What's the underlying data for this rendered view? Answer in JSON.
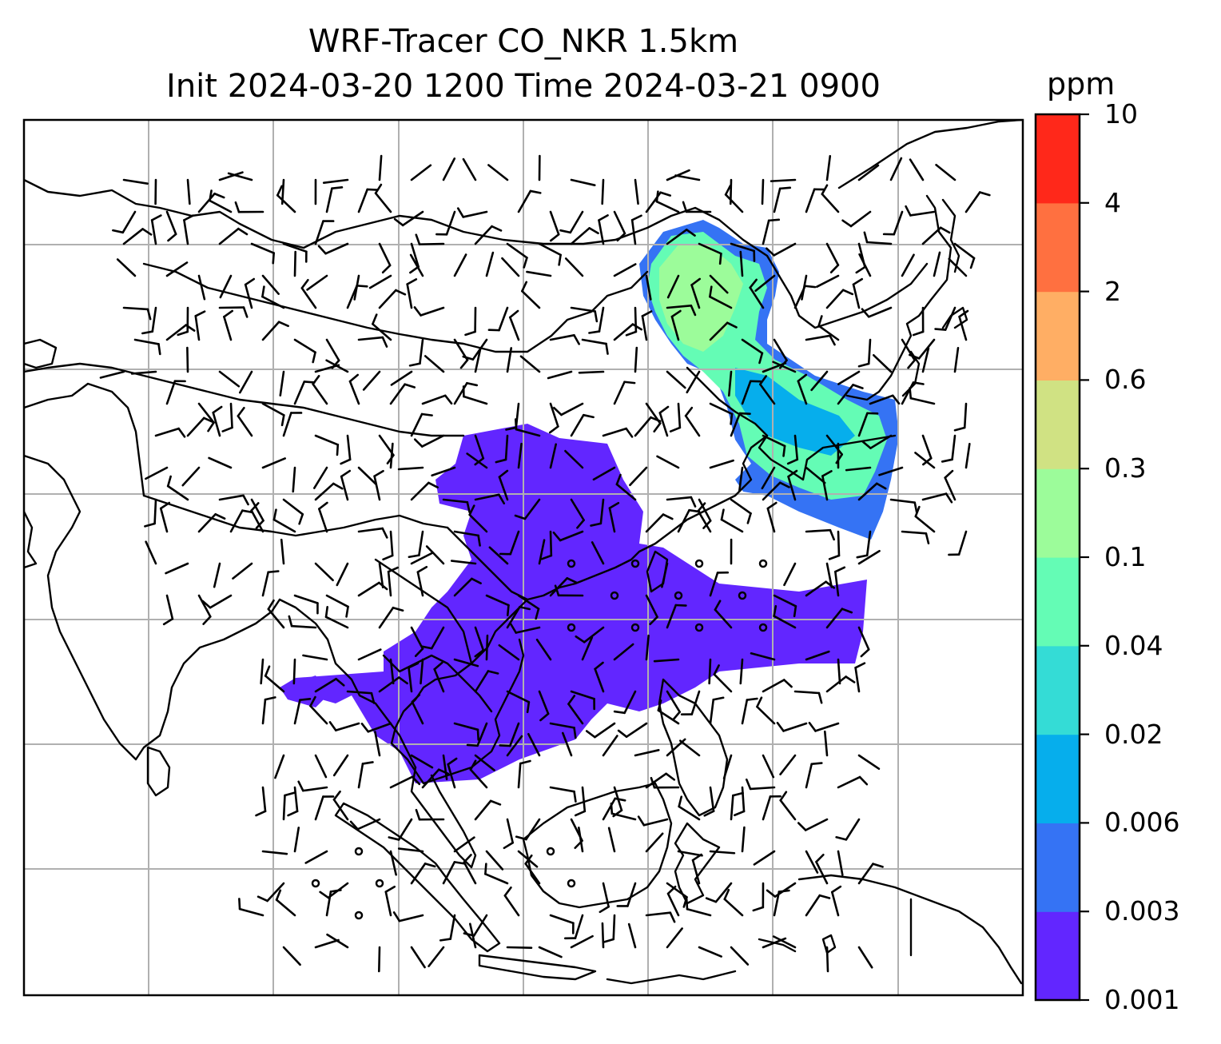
{
  "figure": {
    "title_line1": "WRF-Tracer CO_NKR 1.5km",
    "title_line2": "Init 2024-03-20 1200 Time 2024-03-21 0900"
  },
  "colorbar": {
    "unit": "ppm",
    "ticks": [
      "0.001",
      "0.003",
      "0.006",
      "0.02",
      "0.04",
      "0.1",
      "0.3",
      "0.6",
      "2",
      "4",
      "10"
    ],
    "colors": [
      "#6226ff",
      "#3573f4",
      "#06aeec",
      "#34dcd6",
      "#64fcb5",
      "#9cfc9a",
      "#d0e283",
      "#ffae64",
      "#ff7040",
      "#ff281a"
    ]
  },
  "map": {
    "gridlines": true,
    "gridline_color": "#b0b0b0",
    "coastline_color": "#000000",
    "wind_symbol_color": "#000000"
  }
}
